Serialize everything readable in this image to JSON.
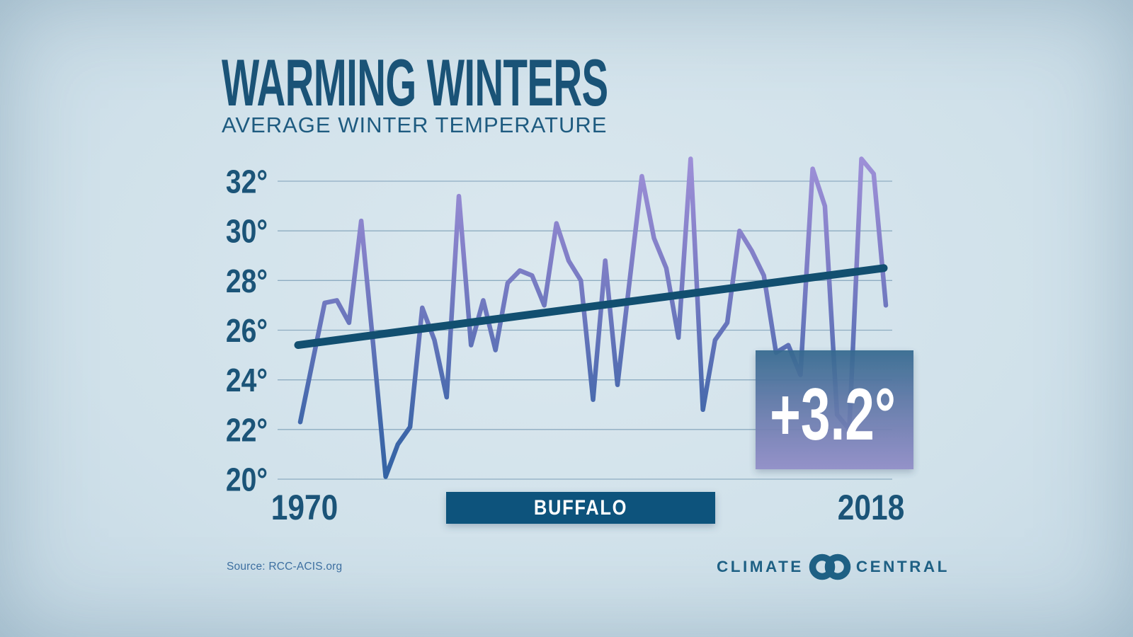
{
  "header": {
    "title": "WARMING WINTERS",
    "subtitle": "AVERAGE WINTER TEMPERATURE"
  },
  "chart_data": {
    "type": "line",
    "title": "Average winter temperature, Buffalo, 1970-2018 (°F)",
    "location_label": "BUFFALO",
    "x_tick_labels": [
      "1970",
      "2018"
    ],
    "y_ticks": [
      32,
      30,
      28,
      26,
      24,
      22,
      20
    ],
    "y_tick_labels": [
      "32°",
      "30°",
      "28°",
      "26°",
      "24°",
      "22°",
      "20°"
    ],
    "ylim": [
      20,
      33
    ],
    "grid": true,
    "legend": "none",
    "years": [
      1970,
      1971,
      1972,
      1973,
      1974,
      1975,
      1976,
      1977,
      1978,
      1979,
      1980,
      1981,
      1982,
      1983,
      1984,
      1985,
      1986,
      1987,
      1988,
      1989,
      1990,
      1991,
      1992,
      1993,
      1994,
      1995,
      1996,
      1997,
      1998,
      1999,
      2000,
      2001,
      2002,
      2003,
      2004,
      2005,
      2006,
      2007,
      2008,
      2009,
      2010,
      2011,
      2012,
      2013,
      2014,
      2015,
      2016,
      2017,
      2018
    ],
    "values": [
      22.3,
      24.7,
      27.1,
      27.2,
      26.3,
      30.4,
      25.3,
      20.1,
      21.4,
      22.1,
      26.9,
      25.6,
      23.3,
      31.4,
      25.4,
      27.2,
      25.2,
      27.9,
      28.4,
      28.2,
      27.0,
      30.3,
      28.8,
      28.0,
      23.2,
      28.8,
      23.8,
      28.0,
      32.2,
      29.7,
      28.5,
      25.7,
      32.9,
      22.8,
      25.6,
      26.3,
      30.0,
      29.2,
      28.2,
      25.1,
      25.4,
      24.2,
      32.5,
      31.0,
      22.6,
      22.0,
      32.9,
      32.3,
      27.0
    ],
    "series_name": "Average winter temperature (°F)",
    "trend": {
      "name": "Linear trend",
      "start_year": 1970,
      "end_year": 2018,
      "start_value": 25.4,
      "end_value": 28.5,
      "label": "+3.2°"
    }
  },
  "footer": {
    "source": "Source: RCC-ACIS.org",
    "logo_left": "CLIMATE",
    "logo_right": "CENTRAL"
  },
  "colors": {
    "background_center": "#dbe8ef",
    "background_edge": "#8fafc4",
    "title_text": "#1a5377",
    "axis_text": "#1b5478",
    "gridline": "#82a3ba",
    "line_gradient_top": "#9e90d8",
    "line_gradient_mid": "#6474ba",
    "line_gradient_bottom": "#3363a4",
    "trend_line": "#124f70",
    "delta_badge_top": "#35698f",
    "delta_badge_bottom": "#908cc7",
    "location_badge": "#11527b",
    "badge_text": "#ffffff",
    "source_text": "#3d6fa0",
    "logo_text": "#1e6084"
  }
}
